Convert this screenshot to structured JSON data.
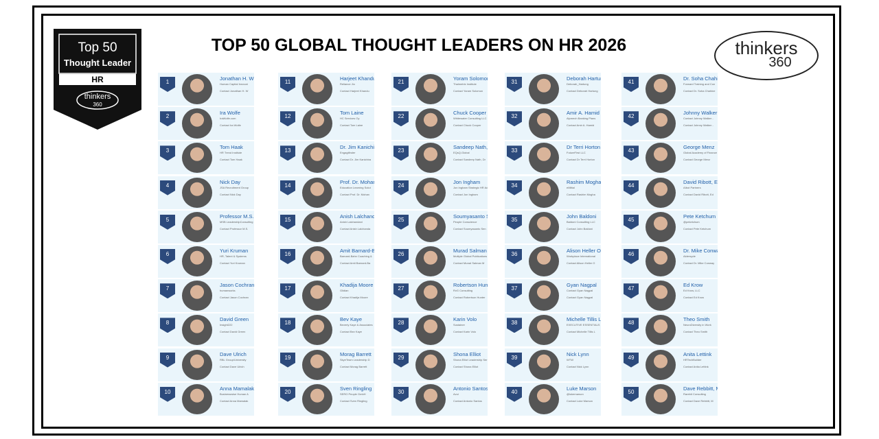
{
  "header": {
    "title": "TOP 50 GLOBAL THOUGHT LEADERS ON HR 2026"
  },
  "badge": {
    "line1": "Top 50",
    "line2": "Thought Leader",
    "topic": "HR",
    "brand": "thinkers",
    "brand_num": "360"
  },
  "logo": {
    "brand": "thinkers",
    "brand_num": "360"
  },
  "leaders": [
    {
      "rank": 1,
      "name": "Jonathan H. W",
      "org": "Human Capital Innovat",
      "contact": "Contact Jonathan H. W"
    },
    {
      "rank": 2,
      "name": "Ira Wolfe",
      "org": "IraWolfe.com",
      "contact": "Contact Ira Wolfe"
    },
    {
      "rank": 3,
      "name": "Tom Haak",
      "org": "HR Trend Institute",
      "contact": "Contact Tom Haak"
    },
    {
      "rank": 4,
      "name": "Nick Day",
      "org": "JSA Recruitment Group",
      "contact": "Contact Nick Day"
    },
    {
      "rank": 5,
      "name": "Professor M.S.",
      "org": "MSB LeadershipConsulting",
      "contact": "Contact Professor M.S."
    },
    {
      "rank": 6,
      "name": "Yuri Kruman",
      "org": "HR, Talent & Systems",
      "contact": "Contact Yuri Kruman"
    },
    {
      "rank": 7,
      "name": "Jason Cochran",
      "org": "humanworks",
      "contact": "Contact Jason Cochran"
    },
    {
      "rank": 8,
      "name": "David Green",
      "org": "Insight222",
      "contact": "Contact David Green"
    },
    {
      "rank": 9,
      "name": "Dave Ulrich",
      "org": "RBL Group/University",
      "contact": "Contact Dave Ulrich"
    },
    {
      "rank": 10,
      "name": "Anna Mamalak",
      "org": "Businesswise Human A",
      "contact": "Contact Anna Mamalak"
    },
    {
      "rank": 11,
      "name": "Harjeet Khandu",
      "org": "Reliance Jio",
      "contact": "Contact Harjeet Khandu"
    },
    {
      "rank": 12,
      "name": "Tom Laine",
      "org": "HC Services Oy",
      "contact": "Contact Tom Laine"
    },
    {
      "rank": 13,
      "name": "Dr. Jim Kanichira",
      "org": "Engagifinder",
      "contact": "Contact Dr. Jim Kanichira"
    },
    {
      "rank": 14,
      "name": "Prof. Dr. Mohan",
      "org": "Education Learning Solut",
      "contact": "Contact Prof. Dr. Mohan"
    },
    {
      "rank": 15,
      "name": "Anish Lalchanda",
      "org": "Anish Lalchandani",
      "contact": "Contact Anish Lalchanda"
    },
    {
      "rank": 16,
      "name": "Amit Barnard-Ba",
      "org": "Barnard-Bahn Coaching &",
      "contact": "Contact Amit Barnard-Ba"
    },
    {
      "rank": 17,
      "name": "Khadija Moore",
      "org": "Glidian",
      "contact": "Contact Khadija Moore"
    },
    {
      "rank": 18,
      "name": "Bev Kaye",
      "org": "Beverly Kaye & Associates",
      "contact": "Contact Bev Kaye"
    },
    {
      "rank": 19,
      "name": "Morag Barrett",
      "org": "SkyeTeam Leadership D",
      "contact": "Contact Morag Barrett"
    },
    {
      "rank": 20,
      "name": "Sven Ringling",
      "org": "SERO People GmbH",
      "contact": "Contact Sven Ringling"
    },
    {
      "rank": 21,
      "name": "Yoram Solomon",
      "org": "Thalmetrix Institute",
      "contact": "Contact Yoram Solomon"
    },
    {
      "rank": 22,
      "name": "Chuck Cooper",
      "org": "Whitewater Consulting LLC",
      "contact": "Contact Chuck Cooper"
    },
    {
      "rank": 23,
      "name": "Sandeep Nath, Dr",
      "org": "EQsQ.Global",
      "contact": "Contact Sandeep Nath, Dr"
    },
    {
      "rank": 24,
      "name": "Jon Ingham",
      "org": "Jon Ingham Strategic HR Ad",
      "contact": "Contact Jon Ingham"
    },
    {
      "rank": 25,
      "name": "Soumyasanto Sen",
      "org": "People Conscience",
      "contact": "Contact Soumyasanto Sen"
    },
    {
      "rank": 26,
      "name": "Murad Salman M",
      "org": "Multiple Global Publications",
      "contact": "Contact Murad Salman M"
    },
    {
      "rank": 27,
      "name": "Robertson Hunter",
      "org": "RvG Consulting",
      "contact": "Contact Robertson Hunter"
    },
    {
      "rank": 28,
      "name": "Karin Volo",
      "org": "Sustainer",
      "contact": "Contact Karin Volo"
    },
    {
      "rank": 29,
      "name": "Shona Elliot",
      "org": "Shona Elliot Leadership Ser",
      "contact": "Contact Shona Elliot"
    },
    {
      "rank": 30,
      "name": "Antonio Santos",
      "org": "Avui",
      "contact": "Contact Antonio Santos"
    },
    {
      "rank": 31,
      "name": "Deborah Hartung",
      "org": "Deborah_Hartung",
      "contact": "Contact Deborah Hartung"
    },
    {
      "rank": 32,
      "name": "Amir A. Hamid",
      "org": "Alpmech Banking Plans",
      "contact": "Contact Amir A. Hamid"
    },
    {
      "rank": 33,
      "name": "Dr Terri Horton",
      "org": "FutureFirst LLC",
      "contact": "Contact Dr Terri Horton"
    },
    {
      "rank": 34,
      "name": "Rashim Mogha",
      "org": "eMittal",
      "contact": "Contact Rashim Mogha"
    },
    {
      "rank": 35,
      "name": "John Baldoni",
      "org": "Baldoni Consulting LLC",
      "contact": "Contact John Baldoni"
    },
    {
      "rank": 36,
      "name": "Alison Heller O",
      "org": "Workplace International",
      "contact": "Contact Alison Heller O"
    },
    {
      "rank": 37,
      "name": "Gyan Nagpal",
      "org": "Contact Gyan Nagpal",
      "contact": "Contact Gyan Nagpal"
    },
    {
      "rank": 38,
      "name": "Michelle Tillis L",
      "org": "EXECUTIVE ESSENTIALS",
      "contact": "Contact Michelle Tillis L"
    },
    {
      "rank": 39,
      "name": "Nick Lynn",
      "org": "WTW",
      "contact": "Contact Nick Lynn"
    },
    {
      "rank": 40,
      "name": "Luke Marson",
      "org": "@lukemarson",
      "contact": "Contact Luke Marson"
    },
    {
      "rank": 41,
      "name": "Dr. Soha Chahine",
      "org": "Forward Training and Con",
      "contact": "Contact Dr. Soha Chahine"
    },
    {
      "rank": 42,
      "name": "Johnny Walker -",
      "org": "Contact Johnny Walker -",
      "contact": "Contact Johnny Walker -"
    },
    {
      "rank": 43,
      "name": "George Menz",
      "org": "Global Academy of Finance",
      "contact": "Contact George Menz"
    },
    {
      "rank": 44,
      "name": "David Ribott, Ed",
      "org": "AIbot Partners",
      "contact": "Contact David Ribott, Ed"
    },
    {
      "rank": 45,
      "name": "Pete Ketchum",
      "org": "@peketchum",
      "contact": "Contact Pete Ketchum"
    },
    {
      "rank": 46,
      "name": "Dr. Mike Conway",
      "org": "Aldersyde",
      "contact": "Contact Dr. Mike Conway"
    },
    {
      "rank": 47,
      "name": "Ed Krow",
      "org": "Ed Krow, LLC",
      "contact": "Contact Ed Krow"
    },
    {
      "rank": 48,
      "name": "Theo Smith",
      "org": "NeuroDiversity in Work",
      "contact": "Contact Theo Smith"
    },
    {
      "rank": 49,
      "name": "Anita Lettink",
      "org": "HRTechBuilder",
      "contact": "Contact Anita Lettink"
    },
    {
      "rank": 50,
      "name": "Dave Rebbitt, M",
      "org": "Rarebit Consulting",
      "contact": "Contact Dave Rebbitt, M"
    }
  ]
}
